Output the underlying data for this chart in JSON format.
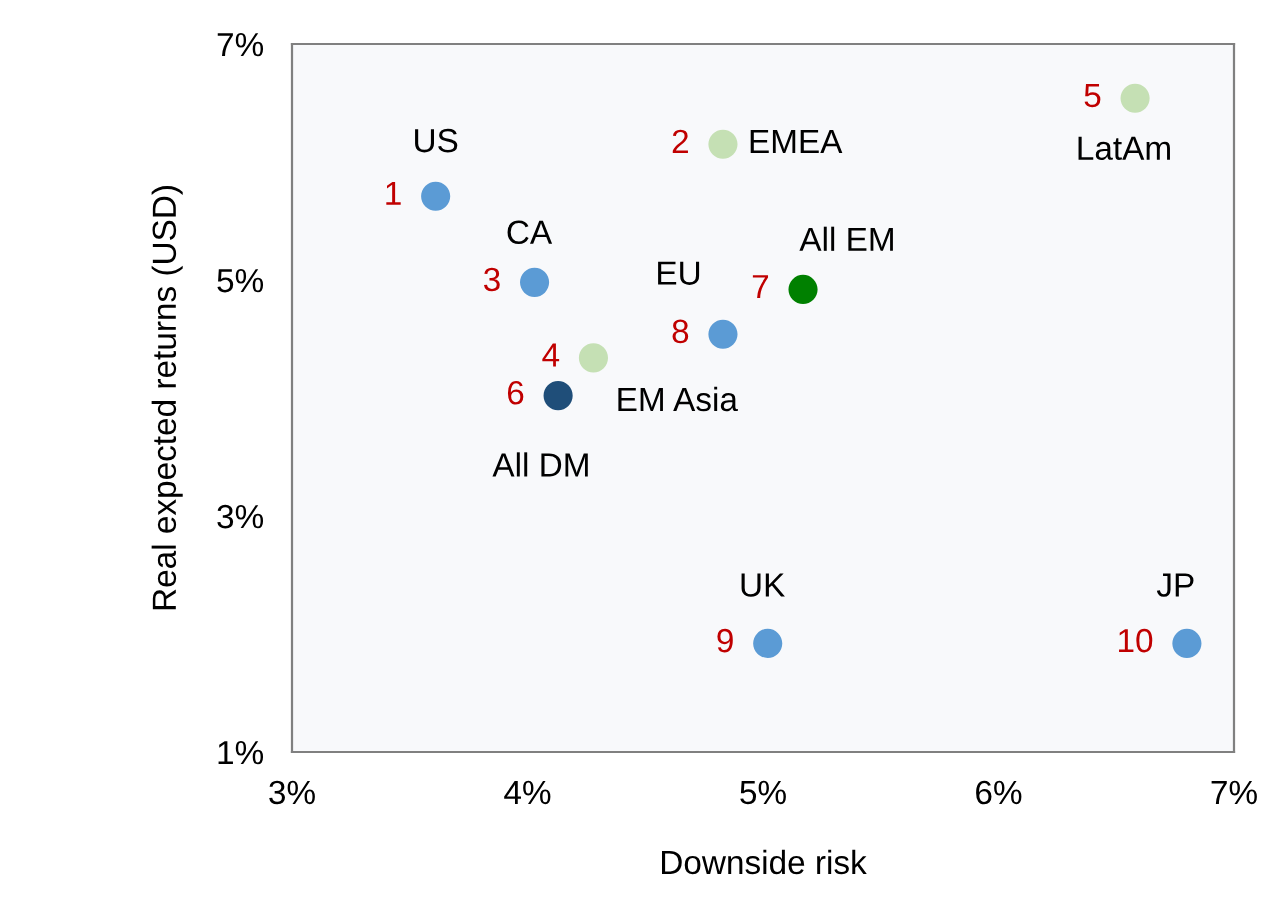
{
  "chart_data": {
    "type": "scatter",
    "xlabel": "Downside risk",
    "ylabel": "Real expected returns (USD)",
    "x": [
      3.61,
      4.83,
      4.03,
      4.28,
      6.58,
      4.13,
      5.17,
      4.83,
      5.02,
      6.8
    ],
    "series": [
      {
        "values": [
          5.71,
          6.15,
          4.98,
          4.34,
          6.54,
          4.02,
          4.92,
          4.54,
          1.92,
          1.92
        ],
        "colors": [
          "#5b9bd5",
          "#c5e0b4",
          "#5b9bd5",
          "#c5e0b4",
          "#c5e0b4",
          "#1f4e79",
          "#008000",
          "#5b9bd5",
          "#5b9bd5",
          "#5b9bd5"
        ]
      }
    ],
    "annotations": [
      {
        "text": "US",
        "x": 3.61,
        "y": 5.71
      },
      {
        "text": "EMEA",
        "x": 4.83,
        "y": 6.15
      },
      {
        "text": "CA",
        "x": 4.03,
        "y": 4.98
      },
      {
        "text": "EM Asia",
        "x": 4.28,
        "y": 4.34
      },
      {
        "text": "LatAm",
        "x": 6.58,
        "y": 6.54
      },
      {
        "text": "All DM",
        "x": 4.13,
        "y": 4.02
      },
      {
        "text": "All EM",
        "x": 5.17,
        "y": 4.92
      },
      {
        "text": "EU",
        "x": 4.83,
        "y": 4.54
      },
      {
        "text": "UK",
        "x": 5.02,
        "y": 1.92
      },
      {
        "text": "JP",
        "x": 6.8,
        "y": 1.92
      },
      {
        "text": "1",
        "x": 3.61,
        "y": 5.71
      },
      {
        "text": "2",
        "x": 4.83,
        "y": 6.15
      },
      {
        "text": "3",
        "x": 4.03,
        "y": 4.98
      },
      {
        "text": "4",
        "x": 4.28,
        "y": 4.34
      },
      {
        "text": "5",
        "x": 6.58,
        "y": 6.54
      },
      {
        "text": "6",
        "x": 4.13,
        "y": 4.02
      },
      {
        "text": "7",
        "x": 5.17,
        "y": 4.92
      },
      {
        "text": "8",
        "x": 4.83,
        "y": 4.54
      },
      {
        "text": "9",
        "x": 5.02,
        "y": 1.92
      },
      {
        "text": "10",
        "x": 6.8,
        "y": 1.92
      }
    ],
    "xlim": [
      3,
      7
    ],
    "ylim": [
      1,
      7
    ],
    "xticks": [
      {
        "value": 3,
        "label": "3%"
      },
      {
        "value": 4,
        "label": "4%"
      },
      {
        "value": 5,
        "label": "5%"
      },
      {
        "value": 6,
        "label": "6%"
      },
      {
        "value": 7,
        "label": "7%"
      }
    ],
    "yticks": [
      {
        "value": 1,
        "label": "1%"
      },
      {
        "value": 3,
        "label": "3%"
      },
      {
        "value": 5,
        "label": "5%"
      },
      {
        "value": 7,
        "label": "7%"
      }
    ],
    "grid": false,
    "marker": "circle"
  }
}
